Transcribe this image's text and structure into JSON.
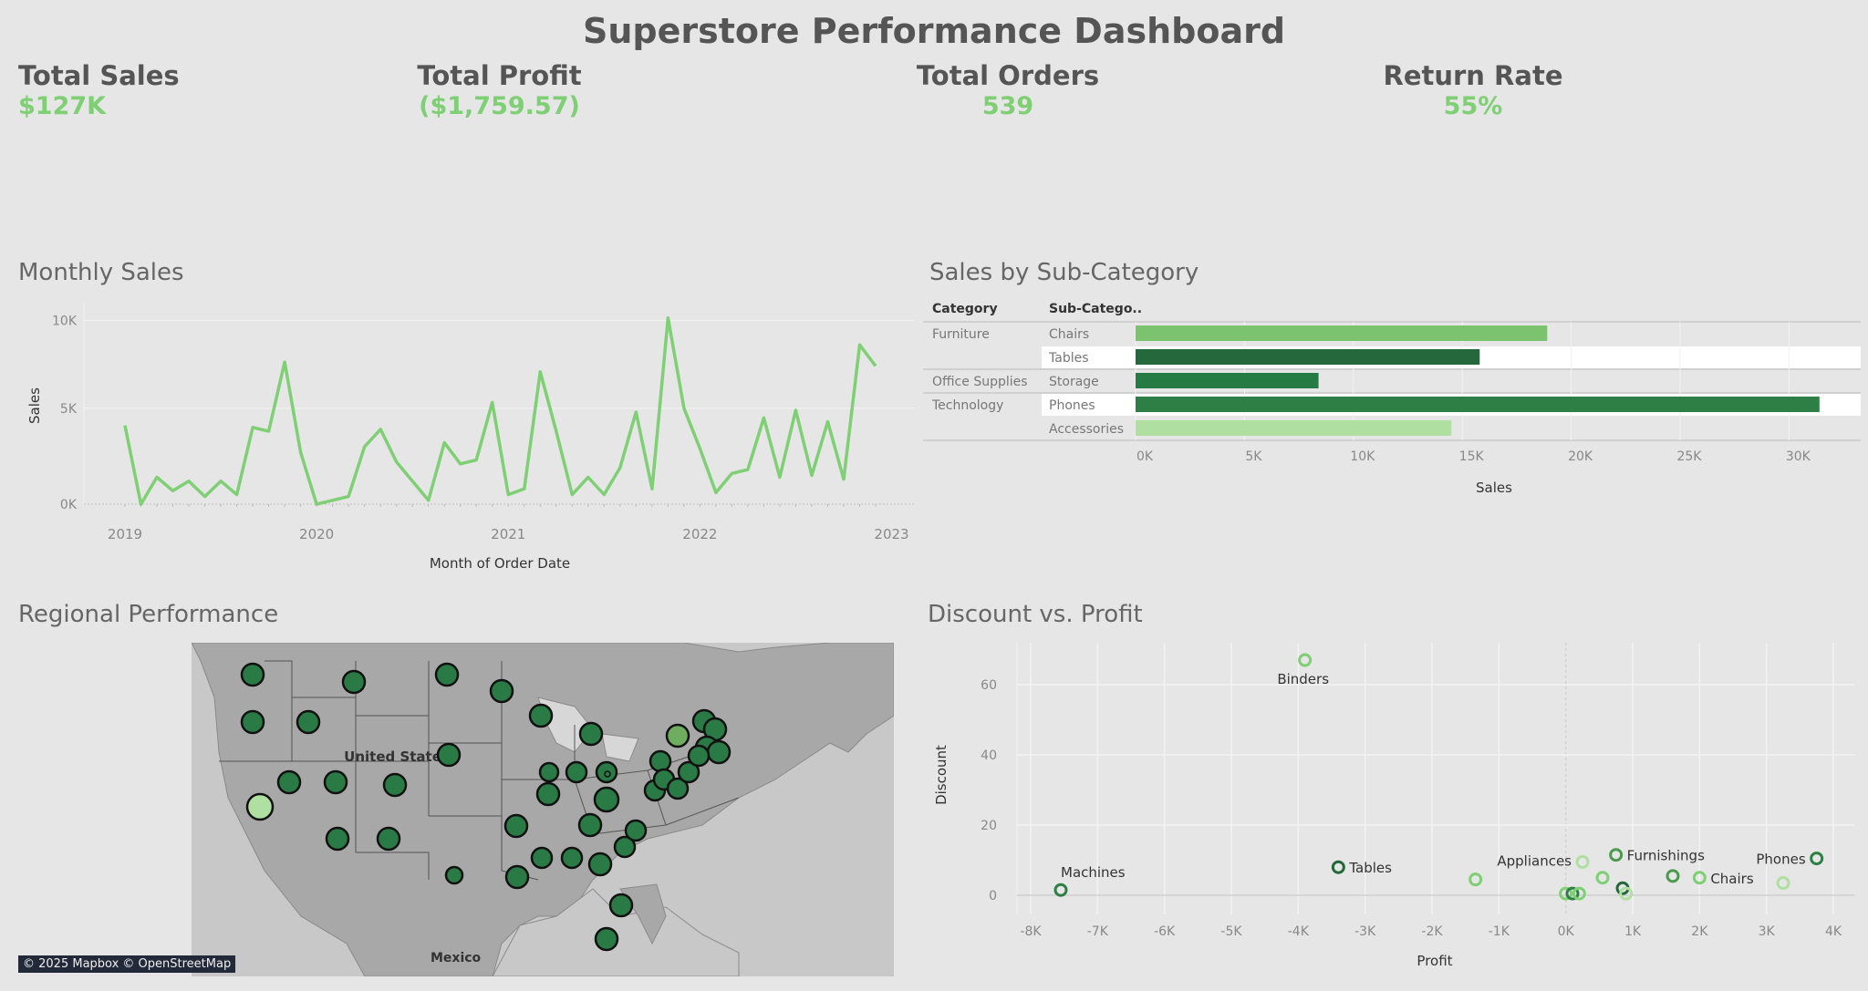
{
  "dashboard": {
    "title": "Superstore Performance Dashboard"
  },
  "kpis": [
    {
      "label": "Total Sales",
      "value": "$127K"
    },
    {
      "label": "Total Profit",
      "value": "($1,759.57)"
    },
    {
      "label": "Total Orders",
      "value": "539"
    },
    {
      "label": "Return Rate",
      "value": "55%"
    }
  ],
  "monthly_sales": {
    "title": "Monthly Sales",
    "chart_data": {
      "type": "line",
      "xlabel": "Month of Order Date",
      "ylabel": "Sales",
      "x_ticks": [
        "2019",
        "2020",
        "2021",
        "2022",
        "2023"
      ],
      "y_ticks": [
        "0K",
        "5K",
        "10K"
      ],
      "ylim": [
        0,
        10500
      ],
      "x_start": "2019-01",
      "values": [
        4100,
        0,
        1400,
        700,
        1200,
        400,
        1200,
        500,
        4000,
        3800,
        7400,
        2700,
        0,
        200,
        400,
        3000,
        3900,
        2200,
        1200,
        200,
        3200,
        2100,
        2300,
        5300,
        500,
        800,
        6900,
        3800,
        500,
        1400,
        500,
        1900,
        4800,
        800,
        9700,
        5000,
        2900,
        600,
        1600,
        1800,
        4500,
        1400,
        4900,
        1500,
        4300,
        1300,
        8300,
        7200
      ],
      "color": "#7fcf75"
    }
  },
  "sub_category": {
    "title": "Sales by Sub-Category",
    "col_headers": [
      "Category",
      "Sub-Catego.."
    ],
    "chart_data": {
      "type": "bar",
      "orientation": "horizontal",
      "xlabel": "Sales",
      "x_ticks": [
        "0K",
        "5K",
        "10K",
        "15K",
        "20K",
        "25K",
        "30K"
      ],
      "xlim": [
        0,
        33000
      ],
      "rows": [
        {
          "category": "Furniture",
          "subcategory": "Chairs",
          "value": 18900,
          "color": "#7cc36f"
        },
        {
          "category": "",
          "subcategory": "Tables",
          "value": 15800,
          "color": "#24683c"
        },
        {
          "category": "Office Supplies",
          "subcategory": "Storage",
          "value": 8400,
          "color": "#267a43"
        },
        {
          "category": "Technology",
          "subcategory": "Phones",
          "value": 31400,
          "color": "#2e7f45"
        },
        {
          "category": "",
          "subcategory": "Accessories",
          "value": 14500,
          "color": "#b0dfa2"
        }
      ]
    }
  },
  "regional": {
    "title": "Regional Performance",
    "map_labels": [
      "United States",
      "Mexico"
    ],
    "attribution": "© 2025 Mapbox © OpenStreetMap"
  },
  "scatter": {
    "title": "Discount vs. Profit",
    "chart_data": {
      "type": "scatter",
      "xlabel": "Profit",
      "ylabel": "Discount",
      "x_ticks": [
        "-8K",
        "-7K",
        "-6K",
        "-5K",
        "-4K",
        "-3K",
        "-2K",
        "-1K",
        "0K",
        "1K",
        "2K",
        "3K",
        "4K"
      ],
      "y_ticks": [
        "0",
        "20",
        "40",
        "60"
      ],
      "xlim": [
        -8200,
        4300
      ],
      "ylim": [
        -4,
        72
      ],
      "points": [
        {
          "x": -3900,
          "y": 67,
          "label": "Binders",
          "color": "#7fcf75"
        },
        {
          "x": -7550,
          "y": 1.5,
          "label": "Machines",
          "color": "#2e7f45"
        },
        {
          "x": -3400,
          "y": 8,
          "label": "Tables",
          "color": "#24683c"
        },
        {
          "x": -1350,
          "y": 4.5,
          "label": "",
          "color": "#7fcf75"
        },
        {
          "x": 250,
          "y": 9.5,
          "label": "Appliances",
          "color": "#b0dfa2"
        },
        {
          "x": 750,
          "y": 11.5,
          "label": "Furnishings",
          "color": "#4c9a50"
        },
        {
          "x": 1600,
          "y": 5.5,
          "label": "",
          "color": "#4c9a50"
        },
        {
          "x": 2000,
          "y": 5,
          "label": "Chairs",
          "color": "#7fcf75"
        },
        {
          "x": 3750,
          "y": 10.5,
          "label": "Phones",
          "color": "#2e7f45"
        },
        {
          "x": 3250,
          "y": 3.5,
          "label": "",
          "color": "#b0dfa2"
        },
        {
          "x": 550,
          "y": 5,
          "label": "",
          "color": "#7fcf75"
        },
        {
          "x": 0,
          "y": 0.5,
          "label": "",
          "color": "#7fcf75"
        },
        {
          "x": 100,
          "y": 0.5,
          "label": "",
          "color": "#2e7f45"
        },
        {
          "x": 200,
          "y": 0.5,
          "label": "",
          "color": "#7fcf75"
        },
        {
          "x": 850,
          "y": 2,
          "label": "",
          "color": "#24683c"
        },
        {
          "x": 900,
          "y": 0.5,
          "label": "",
          "color": "#b0dfa2"
        }
      ]
    }
  }
}
